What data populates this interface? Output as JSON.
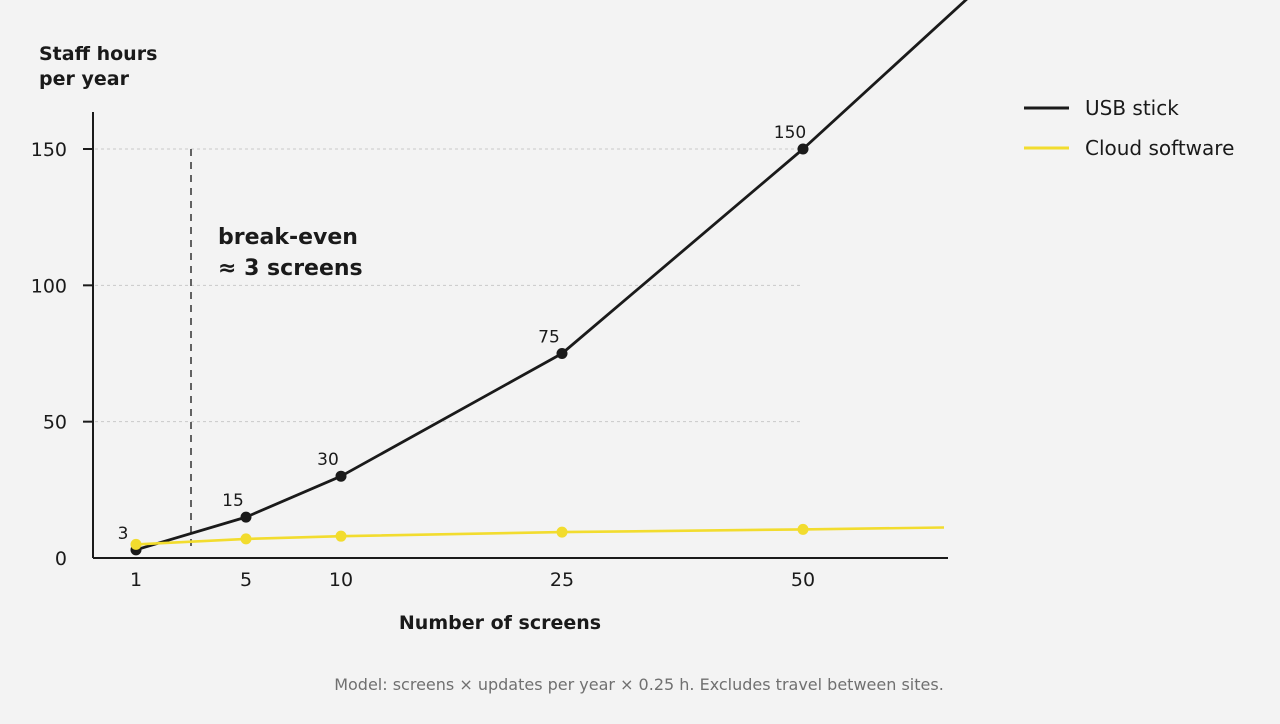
{
  "chart_data": {
    "type": "line",
    "ylabel_lines": [
      "Staff hours",
      "per year"
    ],
    "xlabel": "Number of screens",
    "x_categories": [
      "1",
      "5",
      "10",
      "25",
      "50"
    ],
    "y_ticks": [
      "0",
      "50",
      "100",
      "150"
    ],
    "ylim": [
      0,
      150
    ],
    "grid": "horizontal dotted",
    "legend_position": "top-right",
    "series": [
      {
        "name": "USB stick",
        "color": "#1a1a1a",
        "points": [
          {
            "x": 1,
            "y": 3,
            "label": "3"
          },
          {
            "x": 5,
            "y": 15,
            "label": "15"
          },
          {
            "x": 10,
            "y": 30,
            "label": "30"
          },
          {
            "x": 25,
            "y": 75,
            "label": "75"
          },
          {
            "x": 50,
            "y": 150,
            "label": "150"
          }
        ]
      },
      {
        "name": "Cloud software",
        "color": "#f2dc2e",
        "points": [
          {
            "x": 1,
            "y": 5
          },
          {
            "x": 5,
            "y": 7
          },
          {
            "x": 10,
            "y": 8
          },
          {
            "x": 25,
            "y": 9.5
          },
          {
            "x": 50,
            "y": 10.5
          }
        ]
      }
    ],
    "annotation": {
      "x": 3,
      "lines": [
        "break-even",
        "≈ 3 screens"
      ]
    },
    "footnote": "Model: screens × updates per year × 0.25 h. Excludes travel between sites."
  }
}
